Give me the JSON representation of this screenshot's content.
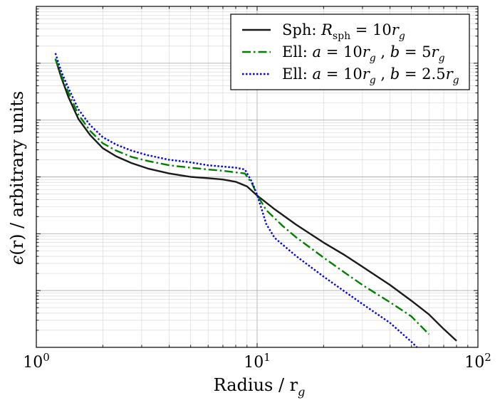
{
  "chart_data": {
    "type": "line",
    "xscale": "log",
    "yscale": "log",
    "xlim": [
      1,
      100
    ],
    "ylim": [
      1e-06,
      1
    ],
    "xlabel": "Radius / r",
    "xlabel_sub": "g",
    "ylabel_prefix": "ϵ",
    "ylabel_rest": "(r) / arbitrary units",
    "x_ticks": [
      {
        "base": "10",
        "exp": "0"
      },
      {
        "base": "10",
        "exp": "1"
      },
      {
        "base": "10",
        "exp": "2"
      }
    ],
    "grid": true,
    "legend_position": "upper right",
    "series": [
      {
        "name": "Sph: R_sph = 10r_g",
        "legend": [
          "Sph: ",
          "R",
          "sph",
          " = 10",
          "r",
          "g"
        ],
        "color": "#1a1a1a",
        "style": "solid",
        "x": [
          1.22,
          1.3,
          1.4,
          1.55,
          1.75,
          2.0,
          2.3,
          2.7,
          3.2,
          4.0,
          5.0,
          6.0,
          7.0,
          8.0,
          9.0,
          10.0,
          12.0,
          15.0,
          20.0,
          25.0,
          30.0,
          40.0,
          50.0,
          60.0,
          70.0,
          80.0
        ],
        "y": [
          0.12,
          0.055,
          0.025,
          0.0105,
          0.0055,
          0.0032,
          0.0023,
          0.00175,
          0.0014,
          0.00115,
          0.001,
          0.00095,
          0.0009,
          0.00082,
          0.00068,
          0.00047,
          0.00027,
          0.000145,
          6.98e-05,
          4.16e-05,
          2.62e-05,
          1.25e-05,
          6.6e-06,
          3.8e-06,
          2.1e-06,
          1.3e-06
        ]
      },
      {
        "name": "Ell: a = 10r_g , b = 5r_g",
        "legend": [
          "Ell: ",
          "a",
          " = 10",
          "r",
          "g",
          " , ",
          "b",
          " = 5",
          "r",
          "g"
        ],
        "color": "#008000",
        "style": "dashdot",
        "x": [
          1.22,
          1.3,
          1.4,
          1.55,
          1.75,
          2.0,
          2.3,
          2.7,
          3.2,
          4.0,
          5.0,
          6.0,
          7.0,
          8.0,
          8.8,
          9.5,
          10.0,
          11.0,
          13.0,
          15.0,
          20.0,
          25.0,
          30.0,
          40.0,
          50.0,
          60.0
        ],
        "y": [
          0.12,
          0.06,
          0.03,
          0.0125,
          0.0065,
          0.0039,
          0.0029,
          0.00225,
          0.0019,
          0.0016,
          0.00145,
          0.00135,
          0.00128,
          0.0012,
          0.00115,
          0.00075,
          0.00048,
          0.00026,
          0.000139,
          8.66e-05,
          3.8e-05,
          2.05e-05,
          1.25e-05,
          6.2e-06,
          3.5e-06,
          1.7e-06
        ]
      },
      {
        "name": "Ell: a = 10r_g , b = 2.5r_g",
        "legend": [
          "Ell: ",
          "a",
          " = 10",
          "r",
          "g",
          " , ",
          "b",
          " = 2.5",
          "r",
          "g"
        ],
        "color": "#0000ee",
        "style": "dotted",
        "x": [
          1.22,
          1.3,
          1.4,
          1.55,
          1.75,
          2.0,
          2.3,
          2.7,
          3.2,
          4.0,
          5.0,
          6.0,
          7.0,
          8.0,
          8.8,
          9.5,
          10.0,
          10.5,
          11.0,
          12.0,
          15.0,
          20.0,
          25.0,
          30.0,
          40.0,
          50.0,
          53.0
        ],
        "y": [
          0.15,
          0.07,
          0.036,
          0.0155,
          0.0082,
          0.005,
          0.0037,
          0.0029,
          0.0024,
          0.002,
          0.0018,
          0.0016,
          0.00152,
          0.00145,
          0.00135,
          0.0008,
          0.00048,
          0.000265,
          0.000148,
          8.47e-05,
          4.06e-05,
          1.76e-05,
          9.5e-06,
          5.8e-06,
          2.7e-06,
          1.25e-06,
          1e-06
        ]
      }
    ]
  }
}
